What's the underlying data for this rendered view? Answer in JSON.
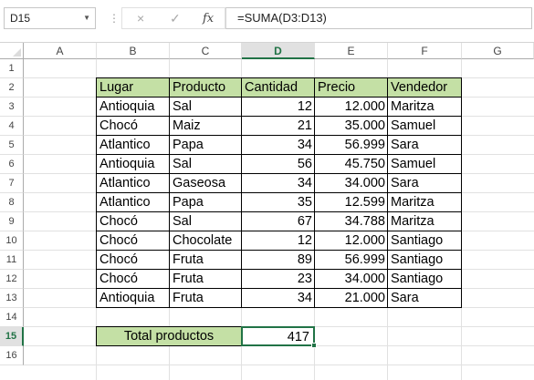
{
  "formula_bar": {
    "name_box": "D15",
    "cancel_icon": "×",
    "enter_icon": "✓",
    "fx_label": "fx",
    "formula": "=SUMA(D3:D13)"
  },
  "columns": [
    "A",
    "B",
    "C",
    "D",
    "E",
    "F",
    "G"
  ],
  "rows": [
    "1",
    "2",
    "3",
    "4",
    "5",
    "6",
    "7",
    "8",
    "9",
    "10",
    "11",
    "12",
    "13",
    "14",
    "15",
    "16"
  ],
  "selected_cell": "D15",
  "table": {
    "headers": [
      "Lugar",
      "Producto",
      "Cantidad",
      "Precio",
      "Vendedor"
    ],
    "rows": [
      [
        "Antioquia",
        "Sal",
        "12",
        "12.000",
        "Maritza"
      ],
      [
        "Chocó",
        "Maiz",
        "21",
        "35.000",
        "Samuel"
      ],
      [
        "Atlantico",
        "Papa",
        "34",
        "56.999",
        "Sara"
      ],
      [
        "Antioquia",
        "Sal",
        "56",
        "45.750",
        "Samuel"
      ],
      [
        "Atlantico",
        "Gaseosa",
        "34",
        "34.000",
        "Sara"
      ],
      [
        "Atlantico",
        "Papa",
        "35",
        "12.599",
        "Maritza"
      ],
      [
        "Chocó",
        "Sal",
        "67",
        "34.788",
        "Maritza"
      ],
      [
        "Chocó",
        "Chocolate",
        "12",
        "12.000",
        "Santiago"
      ],
      [
        "Chocó",
        "Fruta",
        "89",
        "56.999",
        "Santiago"
      ],
      [
        "Chocó",
        "Fruta",
        "23",
        "34.000",
        "Santiago"
      ],
      [
        "Antioquia",
        "Fruta",
        "34",
        "21.000",
        "Sara"
      ]
    ]
  },
  "total": {
    "label": "Total productos",
    "value": "417"
  },
  "colors": {
    "header_fill": "#c4e0a5",
    "selection": "#217346"
  }
}
